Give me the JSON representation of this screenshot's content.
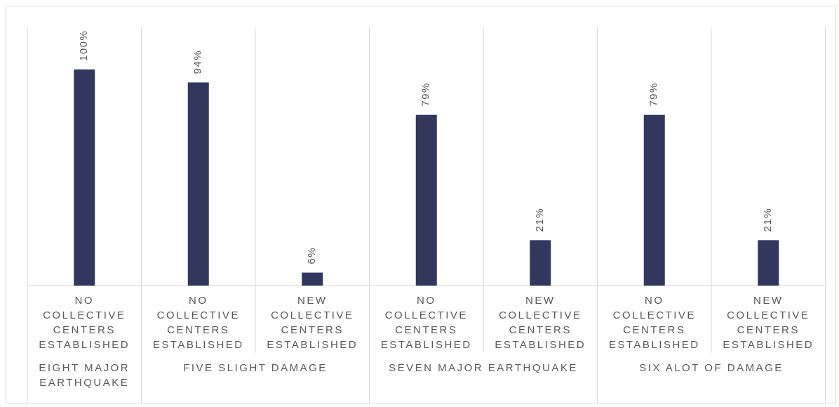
{
  "chart_data": {
    "type": "bar",
    "categories": [
      {
        "sub": [
          "NO",
          "COLLECTIVE",
          "CENTERS",
          "ESTABLISHED"
        ],
        "group": "EIGHT MAJOR EARTHQUAKE",
        "group_lines": [
          "EIGHT MAJOR",
          "EARTHQUAKE"
        ]
      },
      {
        "sub": [
          "NO",
          "COLLECTIVE",
          "CENTERS",
          "ESTABLISHED"
        ],
        "group": "FIVE SLIGHT DAMAGE"
      },
      {
        "sub": [
          "NEW",
          "COLLECTIVE",
          "CENTERS",
          "ESTABLISHED"
        ],
        "group": "FIVE SLIGHT DAMAGE"
      },
      {
        "sub": [
          "NO",
          "COLLECTIVE",
          "CENTERS",
          "ESTABLISHED"
        ],
        "group": "SEVEN MAJOR EARTHQUAKE"
      },
      {
        "sub": [
          "NEW",
          "COLLECTIVE",
          "CENTERS",
          "ESTABLISHED"
        ],
        "group": "SEVEN MAJOR EARTHQUAKE"
      },
      {
        "sub": [
          "NO",
          "COLLECTIVE",
          "CENTERS",
          "ESTABLISHED"
        ],
        "group": "SIX ALOT OF DAMAGE"
      },
      {
        "sub": [
          "NEW",
          "COLLECTIVE",
          "CENTERS",
          "ESTABLISHED"
        ],
        "group": "SIX ALOT OF DAMAGE"
      }
    ],
    "values": [
      100,
      94,
      6,
      79,
      21,
      79,
      21
    ],
    "value_labels": [
      "100%",
      "94%",
      "6%",
      "79%",
      "21%",
      "79%",
      "21%"
    ],
    "groups": [
      {
        "label": "EIGHT MAJOR EARTHQUAKE",
        "lines": [
          "EIGHT MAJOR",
          "EARTHQUAKE"
        ],
        "count": 1
      },
      {
        "label": "FIVE SLIGHT DAMAGE",
        "lines": [
          "FIVE SLIGHT DAMAGE"
        ],
        "count": 2
      },
      {
        "label": "SEVEN MAJOR EARTHQUAKE",
        "lines": [
          "SEVEN MAJOR EARTHQUAKE"
        ],
        "count": 2
      },
      {
        "label": "SIX ALOT OF DAMAGE",
        "lines": [
          "SIX ALOT OF DAMAGE"
        ],
        "count": 2
      }
    ],
    "ylim": [
      0,
      100
    ],
    "grid": false,
    "legend": "none",
    "colors": {
      "bar": "#32375e",
      "text": "#595959",
      "axis": "#d9d9d9"
    }
  }
}
